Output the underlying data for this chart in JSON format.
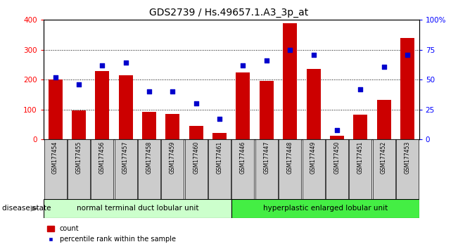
{
  "title": "GDS2739 / Hs.49657.1.A3_3p_at",
  "samples": [
    "GSM177454",
    "GSM177455",
    "GSM177456",
    "GSM177457",
    "GSM177458",
    "GSM177459",
    "GSM177460",
    "GSM177461",
    "GSM177446",
    "GSM177447",
    "GSM177448",
    "GSM177449",
    "GSM177450",
    "GSM177451",
    "GSM177452",
    "GSM177453"
  ],
  "counts": [
    200,
    97,
    230,
    215,
    93,
    85,
    45,
    22,
    225,
    197,
    390,
    237,
    13,
    83,
    133,
    340
  ],
  "percentiles": [
    52,
    46,
    62,
    64,
    40,
    40,
    30,
    17,
    62,
    66,
    75,
    71,
    8,
    42,
    61,
    71
  ],
  "group1_label": "normal terminal duct lobular unit",
  "group2_label": "hyperplastic enlarged lobular unit",
  "group1_count": 8,
  "group2_count": 8,
  "bar_color": "#cc0000",
  "dot_color": "#0000cc",
  "ylim_left": [
    0,
    400
  ],
  "ylim_right": [
    0,
    100
  ],
  "yticks_left": [
    0,
    100,
    200,
    300,
    400
  ],
  "yticks_right": [
    0,
    25,
    50,
    75,
    100
  ],
  "ytick_labels_right": [
    "0",
    "25",
    "50",
    "75",
    "100%"
  ],
  "group1_bg": "#ccffcc",
  "group2_bg": "#44ee44",
  "tick_label_bg": "#cccccc",
  "disease_state_label": "disease state",
  "legend_count_label": "count",
  "legend_pct_label": "percentile rank within the sample"
}
